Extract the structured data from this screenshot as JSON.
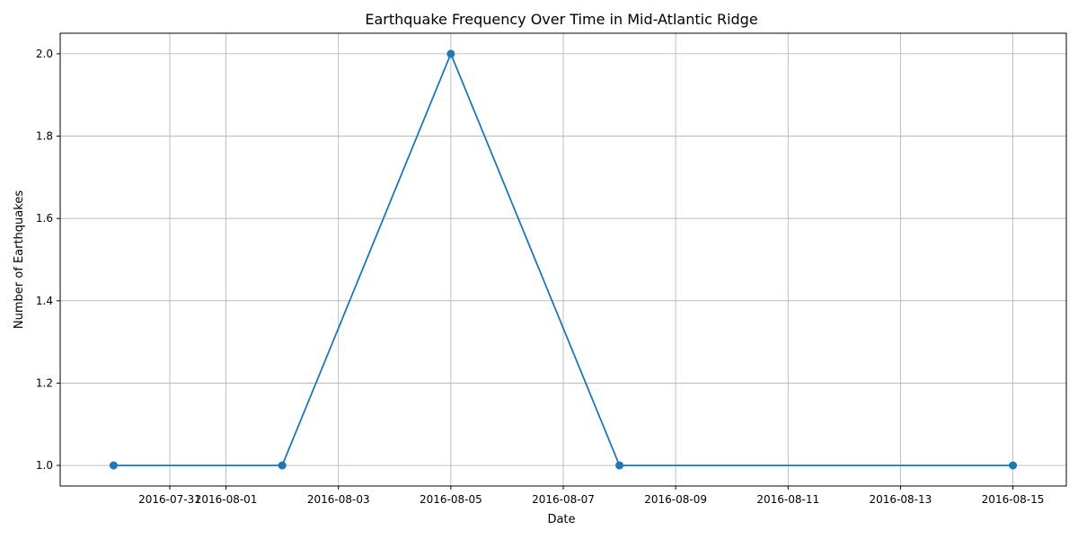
{
  "chart_data": {
    "type": "line",
    "title": "Earthquake Frequency Over Time in Mid-Atlantic Ridge",
    "xlabel": "Date",
    "ylabel": "Number of Earthquakes",
    "x": [
      "2016-07-30",
      "2016-08-02",
      "2016-08-05",
      "2016-08-08",
      "2016-08-15"
    ],
    "series": [
      {
        "values": [
          1,
          1,
          2,
          1,
          1
        ],
        "color": "#1f77b4",
        "marker": "circle"
      }
    ],
    "xlim": [
      "2016-07-29",
      "2016-08-15"
    ],
    "ylim": [
      0.95,
      2.05
    ],
    "xticks": [
      "2016-07-31",
      "2016-08-01",
      "2016-08-03",
      "2016-08-05",
      "2016-08-07",
      "2016-08-09",
      "2016-08-11",
      "2016-08-13",
      "2016-08-15"
    ],
    "yticks": [
      "1.0",
      "1.2",
      "1.4",
      "1.6",
      "1.8",
      "2.0"
    ],
    "grid": true,
    "legend": "none"
  }
}
